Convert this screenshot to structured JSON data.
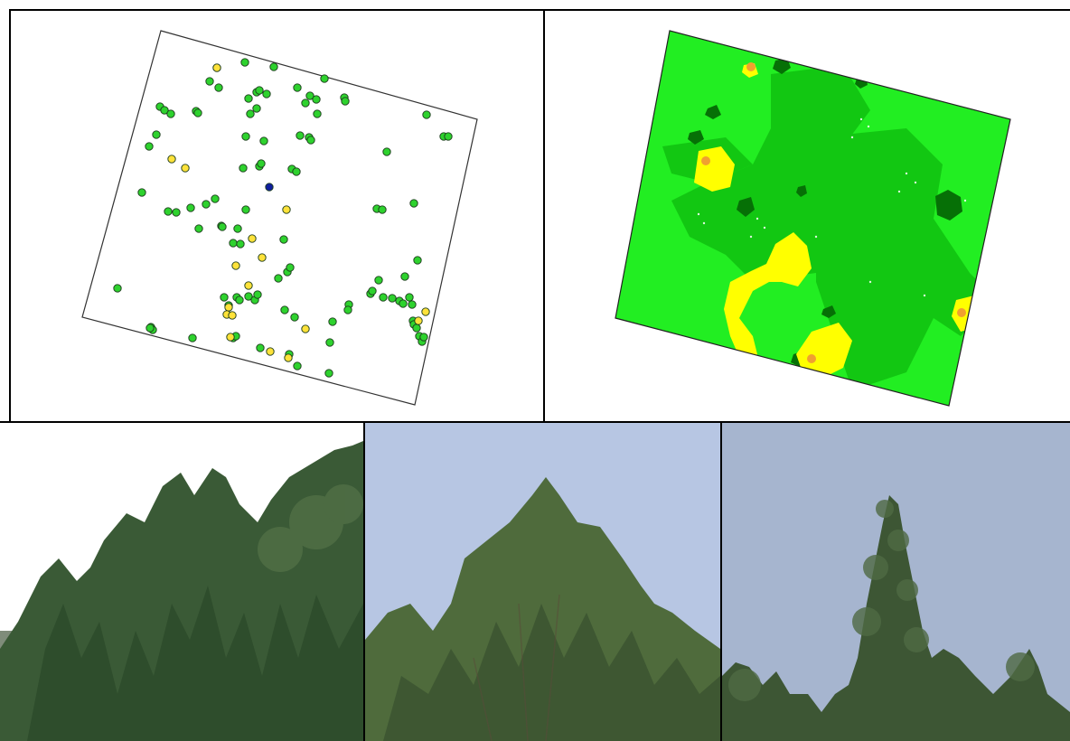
{
  "figure": {
    "panels": [
      {
        "id": "point-map",
        "kind": "tree locations"
      },
      {
        "id": "classified-map",
        "kind": "interpolated classification"
      },
      {
        "id": "photo-1",
        "kind": "tree photograph"
      },
      {
        "id": "photo-2",
        "kind": "tree photograph"
      },
      {
        "id": "photo-3",
        "kind": "tree photograph"
      }
    ],
    "colors": {
      "point_green": "#2ed22e",
      "point_yellow": "#ffe23a",
      "point_blue": "#0f1f9e",
      "map_light_green": "#22ee22",
      "map_mid_green": "#12c712",
      "map_dark_green": "#067006",
      "map_yellow": "#ffff00",
      "map_orange": "#f0a030",
      "sky_1": "#ffffff",
      "sky_2": "#b7c6e3",
      "sky_3": "#a6b5cf",
      "foliage": "#3a5a36"
    }
  }
}
